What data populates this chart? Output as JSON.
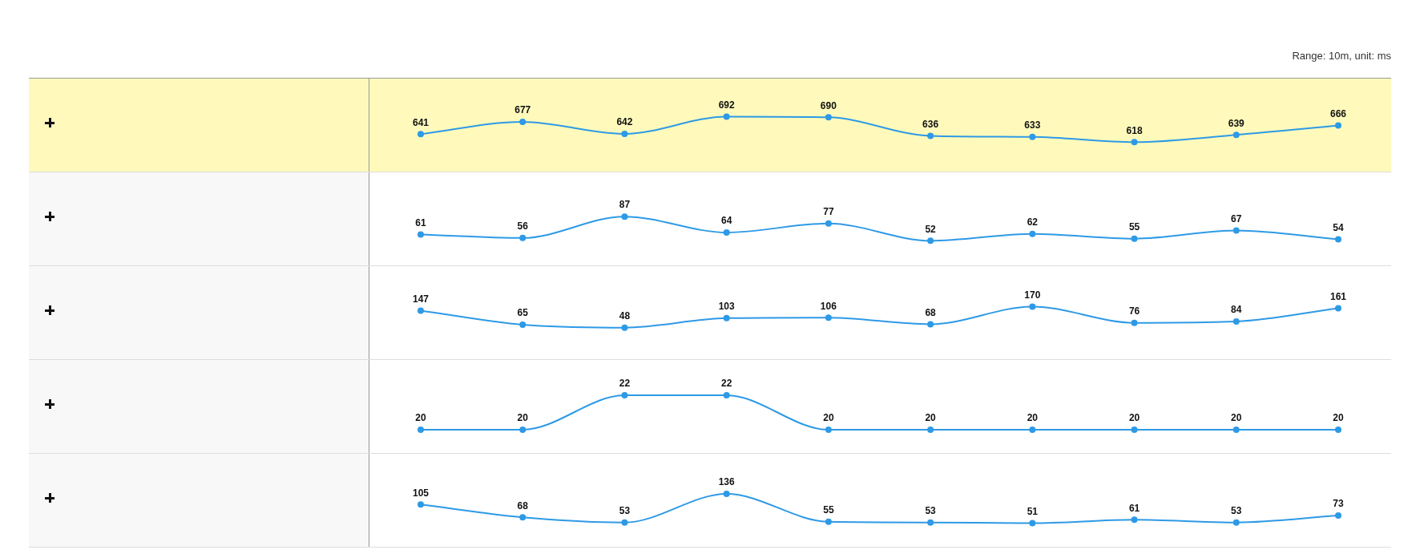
{
  "chart_data": [
    {
      "type": "line",
      "categories": [
        null,
        null,
        null,
        null,
        null,
        null,
        null,
        null,
        null,
        null
      ],
      "values": [
        641,
        677,
        642,
        692,
        690,
        636,
        633,
        618,
        639,
        666
      ],
      "color": "#2e9ae6",
      "marker": "circle",
      "data_labels": true,
      "annotations": [
        "Range: 10m, unit: ms"
      ]
    },
    {
      "type": "line",
      "categories": [
        null,
        null,
        null,
        null,
        null,
        null,
        null,
        null,
        null,
        null
      ],
      "values": [
        61,
        56,
        87,
        64,
        77,
        52,
        62,
        55,
        67,
        54
      ],
      "color": "#2e9ae6",
      "marker": "circle",
      "data_labels": true
    },
    {
      "type": "line",
      "categories": [
        null,
        null,
        null,
        null,
        null,
        null,
        null,
        null,
        null,
        null
      ],
      "values": [
        147,
        65,
        48,
        103,
        106,
        68,
        170,
        76,
        84,
        161
      ],
      "color": "#2e9ae6",
      "marker": "circle",
      "data_labels": true
    },
    {
      "type": "line",
      "categories": [
        null,
        null,
        null,
        null,
        null,
        null,
        null,
        null,
        null,
        null
      ],
      "values": [
        20,
        20,
        22,
        22,
        20,
        20,
        20,
        20,
        20,
        20
      ],
      "color": "#2e9ae6",
      "marker": "circle",
      "data_labels": true
    },
    {
      "type": "line",
      "categories": [
        null,
        null,
        null,
        null,
        null,
        null,
        null,
        null,
        null,
        null
      ],
      "values": [
        105,
        68,
        53,
        136,
        55,
        53,
        51,
        61,
        53,
        73
      ],
      "color": "#2e9ae6",
      "marker": "circle",
      "data_labels": true
    }
  ]
}
